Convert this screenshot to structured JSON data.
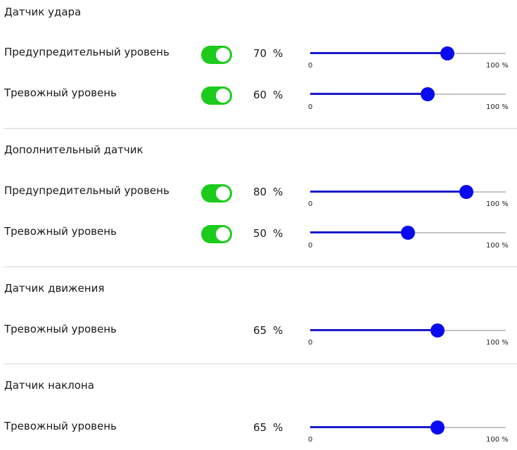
{
  "colors": {
    "toggle_on": "#1ccb1c",
    "slider_fill": "#1a1acc",
    "slider_thumb": "#0a0aee",
    "slider_track": "#c4c4c4"
  },
  "sections": [
    {
      "title": "Датчик удара",
      "rows": [
        {
          "label": "Предупредительный уровень",
          "toggle_on": true,
          "value": "70",
          "unit": "%",
          "slider_min": "0",
          "slider_max": "100 %",
          "level": 0.7
        },
        {
          "label": "Тревожный уровень",
          "toggle_on": true,
          "value": "60",
          "unit": "%",
          "slider_min": "0",
          "slider_max": "100 %",
          "level": 0.6
        }
      ]
    },
    {
      "title": "Дополнительный датчик",
      "rows": [
        {
          "label": "Предупредительный уровень",
          "toggle_on": true,
          "value": "80",
          "unit": "%",
          "slider_min": "0",
          "slider_max": "100 %",
          "level": 0.8
        },
        {
          "label": "Тревожный уровень",
          "toggle_on": true,
          "value": "50",
          "unit": "%",
          "slider_min": "0",
          "slider_max": "100 %",
          "level": 0.5
        }
      ]
    },
    {
      "title": "Датчик движения",
      "rows": [
        {
          "label": "Тревожный уровень",
          "toggle_on": false,
          "value": "65",
          "unit": "%",
          "slider_min": "0",
          "slider_max": "100 %",
          "level": 0.65
        }
      ]
    },
    {
      "title": "Датчик наклона",
      "rows": [
        {
          "label": "Тревожный уровень",
          "toggle_on": false,
          "value": "65",
          "unit": "%",
          "slider_min": "0",
          "slider_max": "100 %",
          "level": 0.65
        }
      ]
    }
  ]
}
